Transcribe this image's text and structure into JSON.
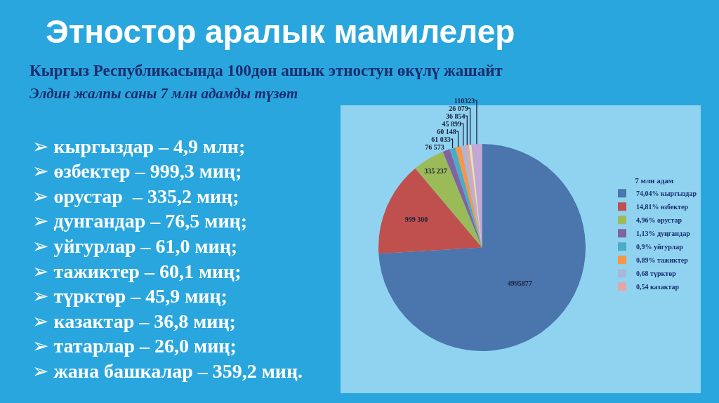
{
  "chart_data": {
    "type": "pie",
    "title": "Этностор аралык мамилелер",
    "subtitle": "Кыргыз Республикасында 100дөн ашык этностун өкүлү жашайт\nЭлдин жалпы саны 7 млн адамды түзөт",
    "categories": [
      "74,04% кыргыздар",
      "14,81% өзбектер",
      "4,96% орустар",
      "1,13% дуңгандар",
      "0,9% уйгурлар",
      "0,89% тажиктер",
      "0,68 түрктөр",
      "0,54 казактар",
      null,
      null
    ],
    "values": [
      4995877,
      999300,
      335237,
      76573,
      61033,
      60148,
      45899,
      36854,
      26079,
      110323
    ],
    "value_labels": [
      "4995877",
      "999 300",
      "335 237",
      "76 573",
      "61 033",
      "60 148",
      "45 899",
      "36 854",
      "26 079",
      "110323"
    ],
    "colors": [
      "#4a75ad",
      "#c0504d",
      "#9bbb59",
      "#8064a2",
      "#4bacc6",
      "#f79646",
      "#aab6dc",
      "#e6a5a5",
      "#e3e3b8",
      "#c3a7d6"
    ],
    "legend": "right",
    "legend_title": "7 млн адам",
    "annotations": [
      "➢ кыргыздар – 4,9 млн;",
      "➢ өзбектер – 999,3 миң;",
      "➢ орустар  – 335,2 миң;",
      "➢ дунгандар – 76,5 миң;",
      "➢ уйгурлар – 61,0 миң;",
      "➢ тажиктер – 60,1 миң;",
      "➢ түрктөр – 45,9 миң;",
      "➢ казактар – 36,8 миң;",
      "➢ татарлар – 26,0 миң;",
      "➢ жана башкалар – 359,2 миң."
    ]
  }
}
